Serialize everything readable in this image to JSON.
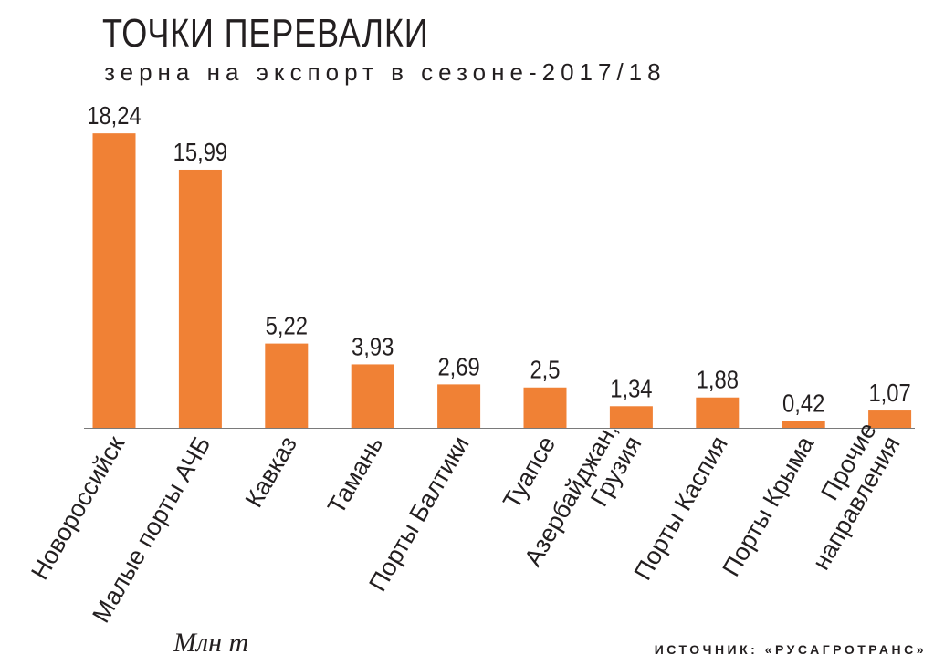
{
  "title": "ТОЧКИ ПЕРЕВАЛКИ",
  "subtitle": "зерна на экспорт в сезоне-2017/18",
  "unit_label": "Млн т",
  "source_label": "ИСТОЧНИК:",
  "source_name": "«РУСАГРОТРАНС»",
  "colors": {
    "bar": "#f08135",
    "axis": "#7a7a7a",
    "text": "#231f20"
  },
  "chart_data": {
    "type": "bar",
    "title": "ТОЧКИ ПЕРЕВАЛКИ",
    "subtitle": "зерна на экспорт в сезоне-2017/18",
    "ylabel": "Млн т",
    "categories": [
      [
        "Новороссийск"
      ],
      [
        "Малые порты АЧБ"
      ],
      [
        "Кавказ"
      ],
      [
        "Тамань"
      ],
      [
        "Порты Балтики"
      ],
      [
        "Туапсе"
      ],
      [
        "Азербайджан,",
        "Грузия"
      ],
      [
        "Порты Каспия"
      ],
      [
        "Порты Крыма"
      ],
      [
        "Прочие",
        "направления"
      ]
    ],
    "values": [
      18.24,
      15.99,
      5.22,
      3.93,
      2.69,
      2.5,
      1.34,
      1.88,
      0.42,
      1.07
    ],
    "value_labels": [
      "18,24",
      "15,99",
      "5,22",
      "3,93",
      "2,69",
      "2,5",
      "1,34",
      "1,88",
      "0,42",
      "1,07"
    ],
    "ylim": [
      0,
      20
    ],
    "grid": false,
    "legend": "none"
  }
}
